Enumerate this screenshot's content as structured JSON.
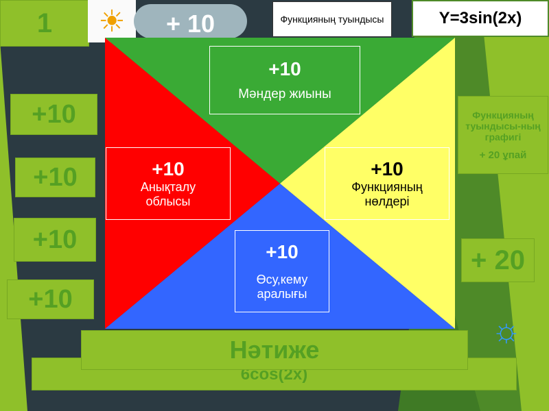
{
  "slide_number": "1",
  "cloud_label": "+ 10",
  "header": {
    "topic": "Функцияның туындысы",
    "function": "Y=3sin(2x)"
  },
  "left_scores": [
    "+10",
    "+10",
    "+10",
    "+10"
  ],
  "triangles": {
    "top": {
      "points": "+10",
      "label": "Мәндер жиыны",
      "color": "#3aaa35"
    },
    "left": {
      "points": "+10",
      "label": "Анықталу облысы",
      "color": "#ff0000"
    },
    "right": {
      "points": "+10",
      "label": "Функцияның нөлдері",
      "color": "#ffff66"
    },
    "bottom": {
      "points": "+10",
      "label": "Өсу,кему аралығы",
      "color": "#3366ff"
    }
  },
  "graph_task": {
    "label": "Функцияның туындысы-ның графигі",
    "points": "+ 20 ұпай"
  },
  "right_score": "+ 20",
  "result": {
    "label": "Нәтиже",
    "answer": "6cos(2x)"
  }
}
